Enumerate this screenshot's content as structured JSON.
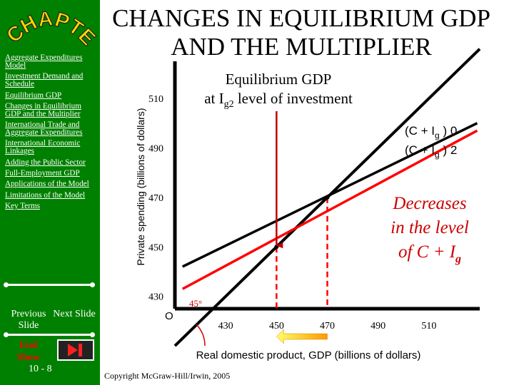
{
  "sidebar": {
    "chapter_logo": "CHAPTER",
    "nav_items": [
      {
        "label": "Aggregate Expenditures Model"
      },
      {
        "label": "Investment Demand and Schedule"
      },
      {
        "label": "Equilibrium GDP"
      },
      {
        "label": "Changes in Equilibrium GDP and the Multiplier"
      },
      {
        "label": "International Trade and Aggregate Expenditures"
      },
      {
        "label": "International Economic Linkages"
      },
      {
        "label": "Adding the Public Sector"
      },
      {
        "label": "Full-Employment GDP"
      },
      {
        "label": "Applications of the Model"
      },
      {
        "label": "Limitations of the Model"
      },
      {
        "label": "Key Terms"
      }
    ],
    "prev_label": "Previous Slide",
    "next_label": "Next Slide",
    "end_show_label": "End Show",
    "page_number": "10 - 8"
  },
  "slide": {
    "title": "CHANGES IN EQUILIBRIUM GDP AND THE MULTIPLIER",
    "copyright": "Copyright McGraw-Hill/Irwin, 2005"
  },
  "colors": {
    "sidebar_green": "#008000",
    "line_red": "#ff0000",
    "arrow_red": "#c00000",
    "annotation_red": "#cc0000"
  },
  "chart_data": {
    "type": "line",
    "xlabel": "Real domestic product, GDP (billions of dollars)",
    "ylabel": "Private spending (billions of dollars)",
    "xlim": [
      410,
      530
    ],
    "ylim": [
      425,
      525
    ],
    "x_ticks": [
      430,
      450,
      470,
      490,
      510
    ],
    "y_ticks": [
      430,
      450,
      470,
      490,
      510
    ],
    "origin_label": "O",
    "angle_label": "45°",
    "series": [
      {
        "name": "45° line",
        "points": [
          [
            410,
            410
          ],
          [
            530,
            530
          ]
        ],
        "color": "#000000"
      },
      {
        "name": "(C + Ig) 0",
        "points": [
          [
            413,
            442
          ],
          [
            529,
            500
          ]
        ],
        "color": "#000000"
      },
      {
        "name": "(C + Ig) 2",
        "points": [
          [
            413,
            433
          ],
          [
            529,
            497
          ]
        ],
        "color": "#ff0000"
      }
    ],
    "equilibria": [
      {
        "x": 470,
        "y": 470
      },
      {
        "x": 450,
        "y": 450
      }
    ],
    "annotations": {
      "equilibrium_line1": "Equilibrium GDP",
      "equilibrium_line2_prefix": "at I",
      "equilibrium_line2_sub": "g2",
      "equilibrium_line2_suffix": " level of investment",
      "series0_label": "(C + I",
      "series0_sub": "g",
      "series0_end": " ) 0",
      "series2_label": "(C + I",
      "series2_sub": "g",
      "series2_end": " ) 2",
      "decrease_line1": "Decreases",
      "decrease_line2": "in the level",
      "decrease_line3": "of  C + I",
      "decrease_sub": "g"
    }
  }
}
